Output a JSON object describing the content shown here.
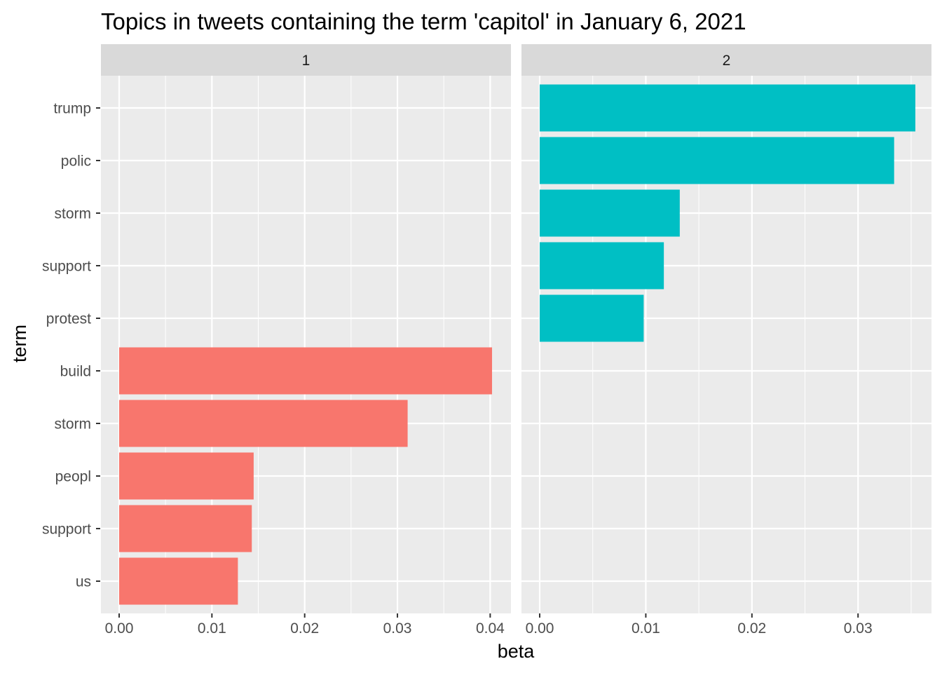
{
  "chart_data": {
    "type": "bar",
    "orientation": "horizontal",
    "title": "Topics in tweets containing the term 'capitol' in January 6, 2021",
    "xlabel": "beta",
    "ylabel": "term",
    "grid": true,
    "legend": "none",
    "y_categories": [
      "trump",
      "polic",
      "storm",
      "support",
      "protest",
      "build",
      "storm",
      "peopl",
      "support",
      "us"
    ],
    "panels": [
      {
        "strip": "1",
        "color": "#F8766D",
        "xlim": [
          0,
          0.0405
        ],
        "ticks": [
          0.0,
          0.01,
          0.02,
          0.03,
          0.04
        ],
        "tick_labels": [
          "0.00",
          "0.01",
          "0.02",
          "0.03",
          "0.04"
        ],
        "bars": [
          {
            "row": 5,
            "term": "build",
            "value": 0.0402
          },
          {
            "row": 6,
            "term": "storm",
            "value": 0.0311
          },
          {
            "row": 7,
            "term": "peopl",
            "value": 0.0145
          },
          {
            "row": 8,
            "term": "support",
            "value": 0.0143
          },
          {
            "row": 9,
            "term": "us",
            "value": 0.0128
          }
        ]
      },
      {
        "strip": "2",
        "color": "#00BFC4",
        "xlim": [
          0,
          0.0356
        ],
        "ticks": [
          0.0,
          0.01,
          0.02,
          0.03
        ],
        "tick_labels": [
          "0.00",
          "0.01",
          "0.02",
          "0.03"
        ],
        "bars": [
          {
            "row": 0,
            "term": "trump",
            "value": 0.0354
          },
          {
            "row": 1,
            "term": "polic",
            "value": 0.0334
          },
          {
            "row": 2,
            "term": "storm",
            "value": 0.0132
          },
          {
            "row": 3,
            "term": "support",
            "value": 0.0117
          },
          {
            "row": 4,
            "term": "protest",
            "value": 0.0098
          }
        ]
      }
    ]
  }
}
